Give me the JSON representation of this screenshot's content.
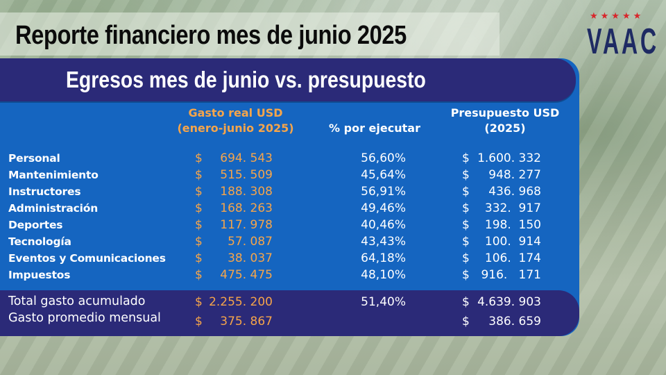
{
  "title": "Reporte financiero mes de junio 2025",
  "logo": {
    "stars": "★★★★★",
    "text": "VAAC"
  },
  "subtitle": "Egresos mes de junio vs. presupuesto",
  "headers": {
    "gasto_line1": "Gasto real USD",
    "gasto_line2": "(enero-junio 2025)",
    "pct": "% por ejecutar",
    "pres_line1": "Presupuesto USD",
    "pres_line2": "(2025)"
  },
  "currency": "$",
  "rows": [
    {
      "category": "Personal",
      "gasto": "694. 543",
      "pct": "56,60%",
      "presupuesto": "1.600. 332"
    },
    {
      "category": "Mantenimiento",
      "gasto": "515. 509",
      "pct": "45,64%",
      "presupuesto": "948. 277"
    },
    {
      "category": "Instructores",
      "gasto": "188. 308",
      "pct": "56,91%",
      "presupuesto": "436. 968"
    },
    {
      "category": "Administración",
      "gasto": "168. 263",
      "pct": "49,46%",
      "presupuesto": "332.  917"
    },
    {
      "category": "Deportes",
      "gasto": "117. 978",
      "pct": "40,46%",
      "presupuesto": "198.  150"
    },
    {
      "category": "Tecnología",
      "gasto": "57. 087",
      "pct": "43,43%",
      "presupuesto": "100.  914"
    },
    {
      "category": "Eventos y Comunicaciones",
      "gasto": "38. 037",
      "pct": "64,18%",
      "presupuesto": "106.  174"
    },
    {
      "category": "Impuestos",
      "gasto": "475. 475",
      "pct": "48,10%",
      "presupuesto": "916.   171"
    }
  ],
  "totals": {
    "total_label": "Total gasto acumulado",
    "total_gasto": "2.255. 200",
    "total_pct": "51,40%",
    "total_presupuesto": "4.639. 903",
    "avg_label": "Gasto promedio mensual",
    "avg_gasto": "375. 867",
    "avg_presupuesto": "386. 659"
  },
  "colors": {
    "panel": "#1565c0",
    "bar": "#2b2a78",
    "accent": "#f6a54a",
    "logo_star": "#d8262b"
  }
}
